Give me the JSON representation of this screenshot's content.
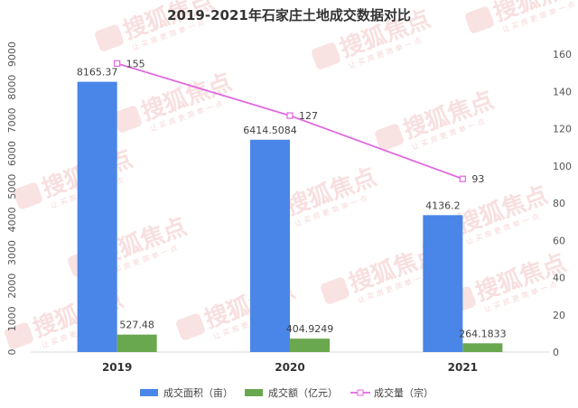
{
  "chart_data": {
    "type": "bar",
    "title": "2019-2021年石家庄土地成交数据对比",
    "categories": [
      "2019",
      "2020",
      "2021"
    ],
    "series": [
      {
        "name": "成交面积（亩）",
        "type": "bar",
        "axis": "left",
        "values": [
          8165.37,
          6414.5084,
          4136.2
        ],
        "labels": [
          "8165.37",
          "6414.5084",
          "4136.2"
        ],
        "color": "#4a86e8"
      },
      {
        "name": "成交额（亿元）",
        "type": "bar",
        "axis": "left",
        "values": [
          527.48,
          404.9249,
          264.1833
        ],
        "labels": [
          "527.48",
          "404.9249",
          "264.1833"
        ],
        "color": "#6aa84f"
      },
      {
        "name": "成交量（宗）",
        "type": "line",
        "axis": "right",
        "values": [
          155,
          127,
          93
        ],
        "labels": [
          "155",
          "127",
          "93"
        ],
        "color": "#e066e0"
      }
    ],
    "left_axis": {
      "min": 0,
      "max": 9000,
      "step": 1000,
      "tick_labels": [
        "0",
        "1000",
        "2000",
        "3000",
        "4000",
        "5000",
        "6000",
        "7000",
        "8000",
        "9000"
      ]
    },
    "right_axis": {
      "min": 0,
      "max": 160,
      "step": 20,
      "tick_labels": [
        "0",
        "20",
        "40",
        "60",
        "80",
        "100",
        "120",
        "140",
        "160"
      ]
    },
    "grid": false,
    "legend_position": "bottom"
  },
  "watermark": {
    "brand": "搜狐焦点",
    "slogan": "让买房更简单一点",
    "color": "#e06666"
  }
}
